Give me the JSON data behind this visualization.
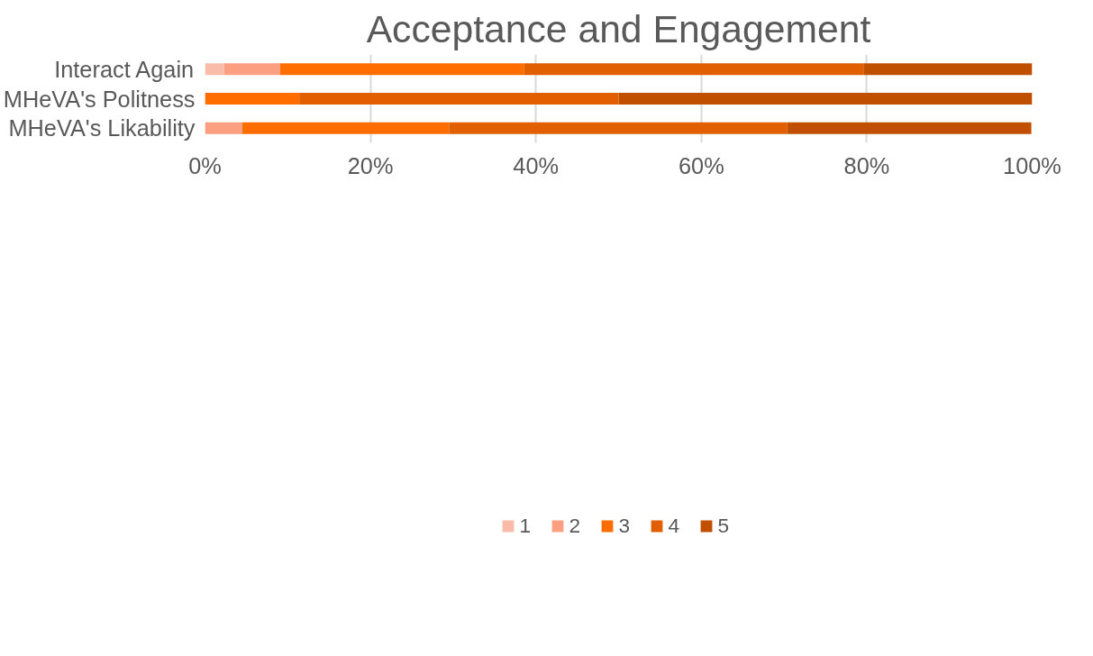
{
  "chart_data": {
    "type": "bar",
    "title": "Acceptance and Engagement",
    "orientation": "horizontal",
    "stacked": true,
    "categories": [
      "Interact Again",
      "MHeVA's Politness",
      "MHeVA's Likability"
    ],
    "series": [
      {
        "name": "1",
        "color": "#f9bca8",
        "values": [
          2.3,
          null,
          null
        ]
      },
      {
        "name": "2",
        "color": "#fb9f80",
        "values": [
          6.8,
          null,
          4.5
        ]
      },
      {
        "name": "3",
        "color": "#ff6d00",
        "values": [
          29.5,
          11.4,
          25.0
        ]
      },
      {
        "name": "4",
        "color": "#e15f00",
        "values": [
          41.0,
          38.6,
          40.9
        ]
      },
      {
        "name": "5",
        "color": "#c04f00",
        "values": [
          20.4,
          50.0,
          29.5
        ]
      }
    ],
    "xlim": [
      0,
      100
    ],
    "xticks": [
      {
        "value": 0,
        "label": "0%"
      },
      {
        "value": 20,
        "label": "20%"
      },
      {
        "value": 40,
        "label": "40%"
      },
      {
        "value": 60,
        "label": "60%"
      },
      {
        "value": 80,
        "label": "80%"
      },
      {
        "value": 100,
        "label": "100%"
      }
    ],
    "grid": "x",
    "legend": "bottom"
  }
}
